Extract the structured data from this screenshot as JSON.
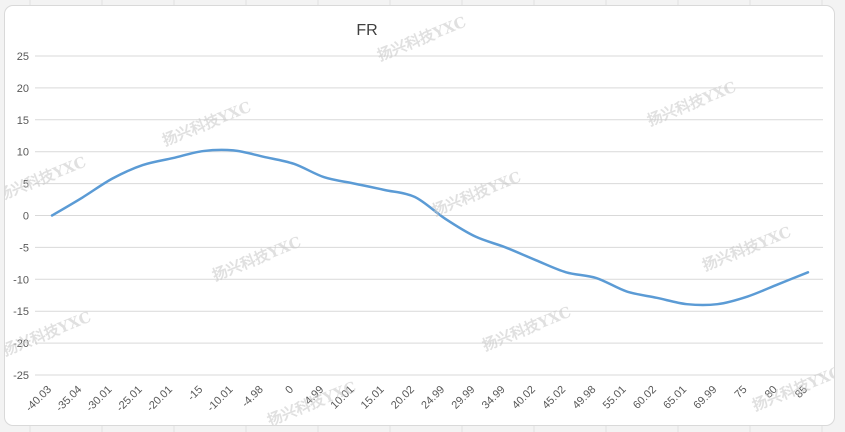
{
  "chart_data": {
    "type": "line",
    "title": "FR",
    "xlabel": "",
    "ylabel": "",
    "categories": [
      "-40.03",
      "-35.04",
      "-30.01",
      "-25.01",
      "-20.01",
      "-15",
      "-10.01",
      "-4.98",
      "0",
      "4.99",
      "10.01",
      "15.01",
      "20.02",
      "24.99",
      "29.99",
      "34.99",
      "40.02",
      "45.02",
      "49.98",
      "55.01",
      "60.02",
      "65.01",
      "69.99",
      "75",
      "80",
      "85"
    ],
    "series": [
      {
        "values": [
          0,
          2.8,
          5.8,
          7.9,
          9.0,
          10.1,
          10.2,
          9.2,
          8.1,
          6.0,
          5.0,
          4.0,
          2.9,
          -0.5,
          -3.3,
          -5.0,
          -7.0,
          -8.9,
          -9.8,
          -11.9,
          -12.9,
          -13.9,
          -13.9,
          -12.7,
          -10.8,
          -8.9
        ]
      }
    ],
    "ylim": [
      -25,
      25
    ],
    "yticks": [
      "25",
      "20",
      "15",
      "10",
      "5",
      "0",
      "-5",
      "-10",
      "-15",
      "-20",
      "-25"
    ],
    "grid": true,
    "legend": "none",
    "line_color": "#5b9bd5"
  },
  "watermark": "扬兴科技YXC"
}
